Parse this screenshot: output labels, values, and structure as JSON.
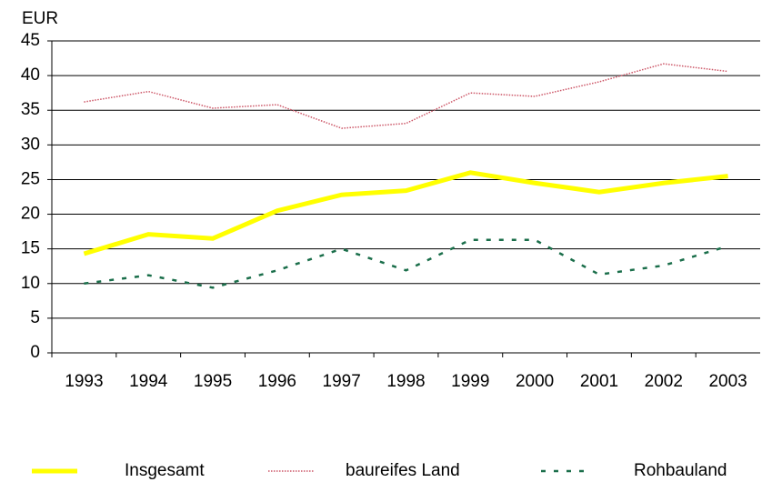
{
  "chart_data": {
    "type": "line",
    "y_axis_label": "EUR",
    "categories": [
      "1993",
      "1994",
      "1995",
      "1996",
      "1997",
      "1998",
      "1999",
      "2000",
      "2001",
      "2002",
      "2003"
    ],
    "series": [
      {
        "name": "Insgesamt",
        "color": "#ffff00",
        "style": "solid",
        "values": [
          14.3,
          17.1,
          16.5,
          20.5,
          22.8,
          23.4,
          26.0,
          24.5,
          23.2,
          24.5,
          25.5
        ]
      },
      {
        "name": "baureifes Land",
        "color": "#cc5566",
        "style": "dotted",
        "values": [
          36.2,
          37.7,
          35.3,
          35.8,
          32.4,
          33.1,
          37.5,
          37.0,
          39.1,
          41.7,
          40.6
        ]
      },
      {
        "name": "Rohbauland",
        "color": "#1a6e4a",
        "style": "dashed",
        "values": [
          10.0,
          11.2,
          9.4,
          11.9,
          15.0,
          11.9,
          16.3,
          16.3,
          11.3,
          12.6,
          15.4
        ]
      }
    ],
    "ylim": [
      0,
      45
    ],
    "yticks": [
      0,
      5,
      10,
      15,
      20,
      25,
      30,
      35,
      40,
      45
    ],
    "grid": true,
    "legend": "bottom"
  }
}
